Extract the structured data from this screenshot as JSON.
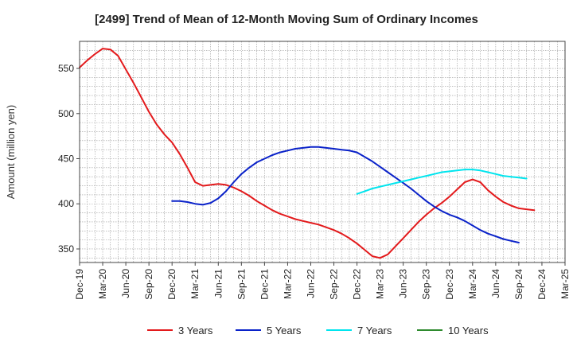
{
  "chart_data": {
    "type": "line",
    "title": "[2499]  Trend of Mean of 12-Month Moving Sum of Ordinary Incomes",
    "xlabel": "",
    "ylabel": "Amount (million yen)",
    "ylim": [
      335,
      580
    ],
    "yticks": [
      350,
      400,
      450,
      500,
      550
    ],
    "x_range": [
      "2019-12",
      "2025-03"
    ],
    "xticks": [
      "Dec-19",
      "Mar-20",
      "Jun-20",
      "Sep-20",
      "Dec-20",
      "Mar-21",
      "Jun-21",
      "Sep-21",
      "Dec-21",
      "Mar-22",
      "Jun-22",
      "Sep-22",
      "Dec-22",
      "Mar-23",
      "Jun-23",
      "Sep-23",
      "Dec-23",
      "Mar-24",
      "Jun-24",
      "Sep-24",
      "Dec-24",
      "Mar-25"
    ],
    "grid": true,
    "legend_position": "bottom",
    "series": [
      {
        "name": "3 Years",
        "color": "#e31a1c",
        "start": "2019-12",
        "values": [
          551,
          559,
          566,
          572,
          571,
          564,
          549,
          534,
          518,
          502,
          488,
          477,
          468,
          455,
          440,
          424,
          420,
          421,
          422,
          421,
          418,
          414,
          409,
          403,
          398,
          393,
          389,
          386,
          383,
          381,
          379,
          377,
          374,
          371,
          367,
          362,
          356,
          349,
          342,
          340,
          344,
          353,
          362,
          371,
          380,
          388,
          395,
          401,
          408,
          416,
          424,
          427,
          424,
          415,
          408,
          402,
          398,
          395,
          394,
          393
        ]
      },
      {
        "name": "5 Years",
        "color": "#0a22c9",
        "start": "2020-12",
        "values": [
          403,
          403,
          402,
          400,
          399,
          401,
          406,
          414,
          424,
          433,
          440,
          446,
          450,
          454,
          457,
          459,
          461,
          462,
          463,
          463,
          462,
          461,
          460,
          459,
          457,
          452,
          447,
          441,
          435,
          429,
          423,
          417,
          410,
          403,
          397,
          392,
          388,
          385,
          381,
          376,
          371,
          367,
          364,
          361,
          359,
          357
        ]
      },
      {
        "name": "7 Years",
        "color": "#00e5ee",
        "start": "2022-12",
        "values": [
          411,
          414,
          417,
          419,
          421,
          423,
          425,
          427,
          429,
          431,
          433,
          435,
          436,
          437,
          438,
          438,
          437,
          435,
          433,
          431,
          430,
          429,
          428
        ]
      },
      {
        "name": "10 Years",
        "color": "#2e8b2e",
        "start": "2019-12",
        "values": []
      }
    ]
  }
}
